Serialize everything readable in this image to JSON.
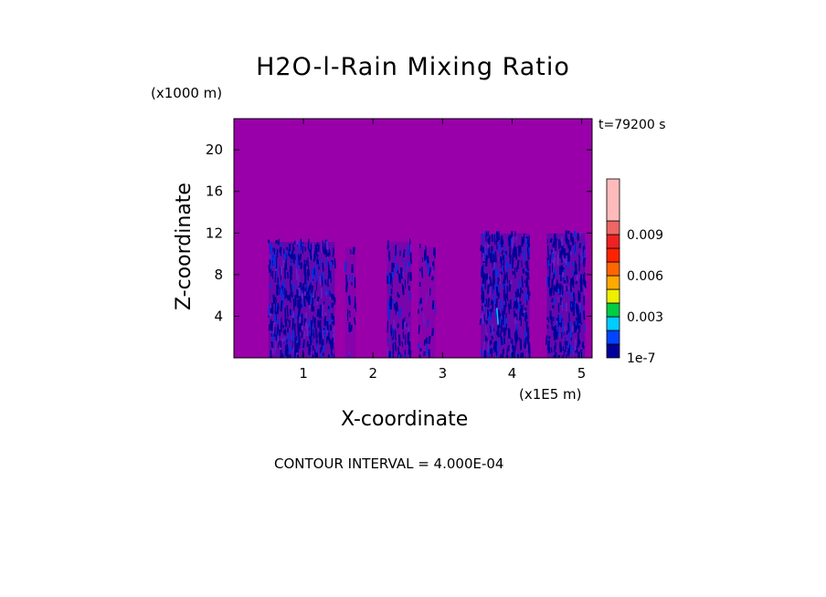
{
  "chart_data": {
    "type": "heatmap",
    "title": "H2O-l-Rain Mixing Ratio",
    "xlabel": "X-coordinate",
    "ylabel": "Z-coordinate",
    "x_unit": "(x1E5 m)",
    "y_unit": "(x1000 m)",
    "time_label": "t=79200 s",
    "footer": "CONTOUR INTERVAL = 4.000E-04",
    "xlim": [
      0,
      5.15
    ],
    "ylim": [
      0,
      23
    ],
    "x_ticks": [
      "1",
      "2",
      "3",
      "4",
      "5"
    ],
    "x_tick_values": [
      1,
      2,
      3,
      4,
      5
    ],
    "y_ticks": [
      "4",
      "8",
      "12",
      "16",
      "20"
    ],
    "y_tick_values": [
      4,
      8,
      12,
      16,
      20
    ],
    "background_color": "#9900aa",
    "colorbar": {
      "colors": [
        "#000099",
        "#0044ff",
        "#00ccff",
        "#00cc44",
        "#eeee00",
        "#ffaa00",
        "#ff6600",
        "#ff2200",
        "#ee2222",
        "#ee6666",
        "#ffbbbb"
      ],
      "labels": [
        "1e-7",
        "0.003",
        "0.006",
        "0.009"
      ]
    },
    "rain_regions": [
      {
        "x_start": 0.5,
        "x_end": 1.45,
        "z_top": 11.5,
        "intensity": "dense"
      },
      {
        "x_start": 1.6,
        "x_end": 1.75,
        "z_top": 11,
        "intensity": "sparse"
      },
      {
        "x_start": 2.2,
        "x_end": 2.55,
        "z_top": 11.5,
        "intensity": "medium"
      },
      {
        "x_start": 2.65,
        "x_end": 2.9,
        "z_top": 11,
        "intensity": "sparse"
      },
      {
        "x_start": 3.55,
        "x_end": 4.25,
        "z_top": 12.3,
        "intensity": "dense"
      },
      {
        "x_start": 4.5,
        "x_end": 5.05,
        "z_top": 12.3,
        "intensity": "dense"
      }
    ]
  }
}
